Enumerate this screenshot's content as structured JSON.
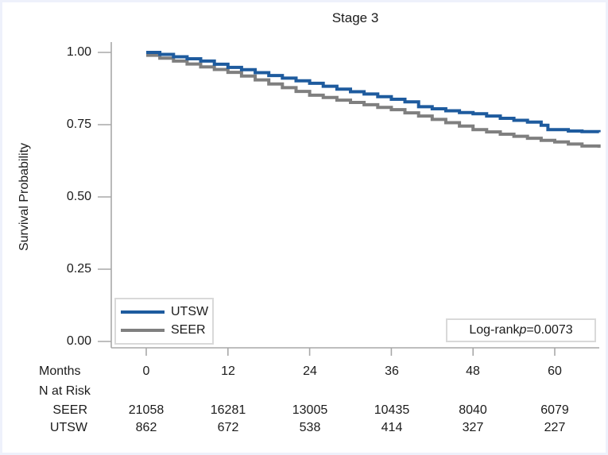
{
  "title": "Stage 3",
  "y_axis": {
    "label": "Survival Probability",
    "ticks": [
      "1.00",
      "0.75",
      "0.50",
      "0.25",
      "0.00"
    ]
  },
  "x_axis": {
    "label": "Months",
    "ticks": [
      "0",
      "12",
      "24",
      "36",
      "48",
      "60"
    ]
  },
  "legend": {
    "items": [
      {
        "label": "UTSW",
        "color": "#1e5b9e"
      },
      {
        "label": "SEER",
        "color": "#7f7f7f"
      }
    ]
  },
  "annotation": {
    "prefix": "Log-rank",
    "p": "p",
    "value": "=0.0073"
  },
  "risk_table": {
    "header": "N at Risk",
    "rows": [
      {
        "label": "SEER",
        "values": [
          "21058",
          "16281",
          "13005",
          "10435",
          "8040",
          "6079"
        ]
      },
      {
        "label": "UTSW",
        "values": [
          "862",
          "672",
          "538",
          "414",
          "327",
          "227"
        ]
      }
    ]
  },
  "chart_data": {
    "type": "line",
    "subtype": "kaplan-meier-step",
    "title": "Stage 3",
    "xlabel": "Months",
    "ylabel": "Survival Probability",
    "xlim": [
      0,
      66.5
    ],
    "ylim": [
      0,
      1
    ],
    "x_ticks": [
      0,
      12,
      24,
      36,
      48,
      60
    ],
    "y_ticks": [
      0.0,
      0.25,
      0.5,
      0.75,
      1.0
    ],
    "grid": false,
    "legend_position": "bottom-left",
    "annotation": "Log-rank p=0.0073",
    "axis_color": "#a8a8a8",
    "series": [
      {
        "name": "UTSW",
        "color": "#1e5b9e",
        "points": [
          [
            0,
            1.0
          ],
          [
            2,
            0.993
          ],
          [
            4,
            0.985
          ],
          [
            6,
            0.978
          ],
          [
            8,
            0.97
          ],
          [
            10,
            0.959
          ],
          [
            12,
            0.948
          ],
          [
            14,
            0.94
          ],
          [
            16,
            0.93
          ],
          [
            18,
            0.92
          ],
          [
            20,
            0.911
          ],
          [
            22,
            0.902
          ],
          [
            24,
            0.893
          ],
          [
            26,
            0.883
          ],
          [
            28,
            0.873
          ],
          [
            30,
            0.864
          ],
          [
            32,
            0.856
          ],
          [
            34,
            0.847
          ],
          [
            36,
            0.838
          ],
          [
            38,
            0.829
          ],
          [
            40,
            0.812
          ],
          [
            42,
            0.805
          ],
          [
            44,
            0.798
          ],
          [
            46,
            0.792
          ],
          [
            48,
            0.788
          ],
          [
            50,
            0.78
          ],
          [
            52,
            0.772
          ],
          [
            54,
            0.765
          ],
          [
            56,
            0.759
          ],
          [
            58,
            0.748
          ],
          [
            59,
            0.733
          ],
          [
            62,
            0.728
          ],
          [
            64,
            0.726
          ],
          [
            66.5,
            0.724
          ]
        ]
      },
      {
        "name": "SEER",
        "color": "#7f7f7f",
        "points": [
          [
            0,
            0.99
          ],
          [
            2,
            0.98
          ],
          [
            4,
            0.97
          ],
          [
            6,
            0.96
          ],
          [
            8,
            0.95
          ],
          [
            10,
            0.941
          ],
          [
            12,
            0.931
          ],
          [
            14,
            0.918
          ],
          [
            16,
            0.905
          ],
          [
            18,
            0.891
          ],
          [
            20,
            0.878
          ],
          [
            22,
            0.865
          ],
          [
            24,
            0.852
          ],
          [
            26,
            0.844
          ],
          [
            28,
            0.835
          ],
          [
            30,
            0.827
          ],
          [
            32,
            0.819
          ],
          [
            34,
            0.81
          ],
          [
            36,
            0.802
          ],
          [
            38,
            0.791
          ],
          [
            40,
            0.78
          ],
          [
            42,
            0.768
          ],
          [
            44,
            0.757
          ],
          [
            46,
            0.745
          ],
          [
            48,
            0.733
          ],
          [
            50,
            0.725
          ],
          [
            52,
            0.717
          ],
          [
            54,
            0.71
          ],
          [
            56,
            0.703
          ],
          [
            58,
            0.696
          ],
          [
            60,
            0.69
          ],
          [
            62,
            0.683
          ],
          [
            64,
            0.676
          ],
          [
            66.5,
            0.67
          ]
        ]
      }
    ],
    "n_at_risk": {
      "months": [
        0,
        12,
        24,
        36,
        48,
        60
      ],
      "SEER": [
        21058,
        16281,
        13005,
        10435,
        8040,
        6079
      ],
      "UTSW": [
        862,
        672,
        538,
        414,
        327,
        227
      ]
    }
  }
}
